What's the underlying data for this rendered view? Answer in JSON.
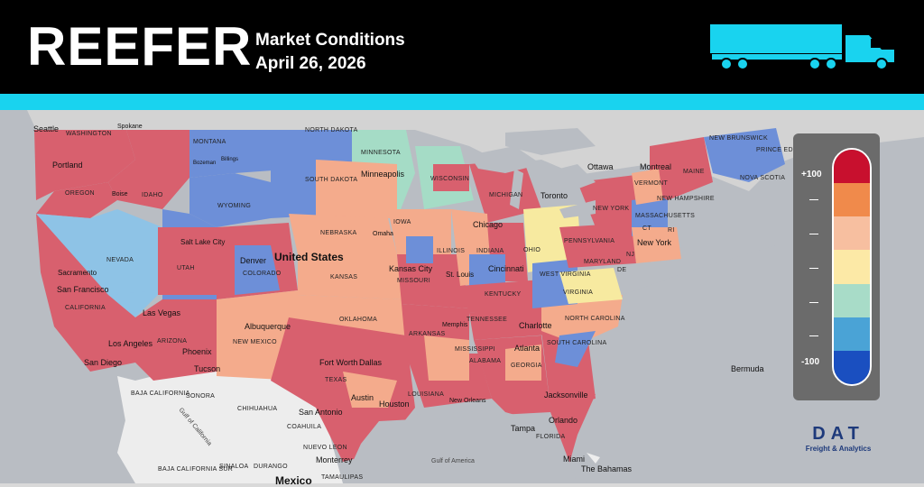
{
  "header": {
    "title": "REEFER",
    "subtitle": "Market Conditions",
    "date": "April 26, 2026"
  },
  "colors": {
    "header_bg": "#000000",
    "accent": "#19d3ef",
    "hot": "#d8606e",
    "warm": "#f4ab8c",
    "neutral": "#f7eaa0",
    "cool": "#a5dcc6",
    "cold": "#6d8fd8",
    "water": "#b8bcc2"
  },
  "map": {
    "country_label": "United States",
    "state_labels": [
      "WASHINGTON",
      "OREGON",
      "IDAHO",
      "MONTANA",
      "WYOMING",
      "NEVADA",
      "UTAH",
      "COLORADO",
      "ARIZONA",
      "NEW MEXICO",
      "CALIFORNIA",
      "NORTH DAKOTA",
      "SOUTH DAKOTA",
      "NEBRASKA",
      "KANSAS",
      "OKLAHOMA",
      "TEXAS",
      "MINNESOTA",
      "IOWA",
      "MISSOURI",
      "ARKANSAS",
      "LOUISIANA",
      "WISCONSIN",
      "ILLINOIS",
      "MICHIGAN",
      "INDIANA",
      "OHIO",
      "KENTUCKY",
      "TENNESSEE",
      "MISSISSIPPI",
      "ALABAMA",
      "GEORGIA",
      "FLORIDA",
      "SOUTH CAROLINA",
      "NORTH CAROLINA",
      "VIRGINIA",
      "WEST VIRGINIA",
      "PENNSYLVANIA",
      "NEW YORK",
      "VERMONT",
      "NEW HAMPSHIRE",
      "MAINE",
      "MASSACHUSETTS",
      "CT",
      "RI",
      "NJ",
      "MARYLAND",
      "DE",
      "NEW BRUNSWICK",
      "PRINCE EDWARD ISLAND",
      "NOVA SCOTIA",
      "SONORA",
      "CHIHUAHUA",
      "COAHUILA",
      "NUEVO LEON",
      "TAMAULIPAS",
      "SINALOA",
      "DURANGO",
      "BAJA CALIFORNIA",
      "BAJA CALIFORNIA SUR"
    ],
    "cities": [
      "Seattle",
      "Spokane",
      "Portland",
      "Boise",
      "Bozeman",
      "Billings",
      "Salt Lake City",
      "Denver",
      "Sacramento",
      "San Francisco",
      "Las Vegas",
      "Los Angeles",
      "San Diego",
      "Phoenix",
      "Tucson",
      "Albuquerque",
      "Minneapolis",
      "Omaha",
      "Kansas City",
      "St. Louis",
      "Chicago",
      "Cincinnati",
      "Toronto",
      "Ottawa",
      "Montreal",
      "New York",
      "Memphis",
      "Fort Worth",
      "Dallas",
      "Austin",
      "San Antonio",
      "Houston",
      "New Orleans",
      "Atlanta",
      "Charlotte",
      "Jacksonville",
      "Orlando",
      "Tampa",
      "Miami",
      "Monterrey",
      "Bermuda",
      "The Bahamas",
      "Mexico"
    ],
    "water_labels": [
      "Gulf of California",
      "Gulf of America"
    ]
  },
  "legend": {
    "max_label": "+100",
    "min_label": "-100",
    "mid_ticks": [
      "—",
      "—",
      "—",
      "—",
      "—"
    ],
    "colors": [
      "#c8102e",
      "#f08a4b",
      "#f7bfa0",
      "#fce9a6",
      "#a8dcc8",
      "#4aa3d6",
      "#1a4fc0"
    ]
  },
  "branding": {
    "logo": "DAT",
    "tagline": "Freight & Analytics"
  }
}
